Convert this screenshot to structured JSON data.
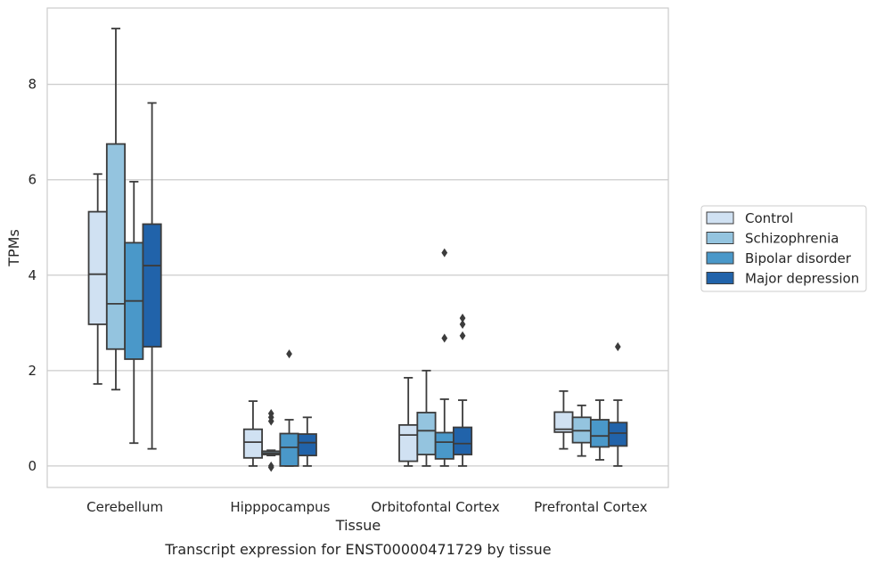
{
  "caption": "Transcript expression for ENST00000471729 by tissue",
  "chart_data": {
    "type": "box",
    "xlabel": "Tissue",
    "ylabel": "TPMs",
    "ylim": [
      -0.45,
      9.6
    ],
    "yticks": [
      0,
      2,
      4,
      6,
      8
    ],
    "grid": "horizontal",
    "legend_position": "right",
    "categories": [
      "Cerebellum",
      "Hipppocampus",
      "Orbitofontal Cortex",
      "Prefrontal Cortex"
    ],
    "series": [
      {
        "name": "Control",
        "color": "#d0e1f2",
        "boxes": [
          {
            "whislo": 1.72,
            "q1": 2.97,
            "med": 4.02,
            "q3": 5.33,
            "whishi": 6.12,
            "fliers": []
          },
          {
            "whislo": 0.0,
            "q1": 0.17,
            "med": 0.5,
            "q3": 0.77,
            "whishi": 1.36,
            "fliers": []
          },
          {
            "whislo": 0.0,
            "q1": 0.1,
            "med": 0.65,
            "q3": 0.86,
            "whishi": 1.85,
            "fliers": []
          },
          {
            "whislo": 0.36,
            "q1": 0.71,
            "med": 0.77,
            "q3": 1.13,
            "whishi": 1.57,
            "fliers": []
          }
        ]
      },
      {
        "name": "Schizophrenia",
        "color": "#94c4df",
        "boxes": [
          {
            "whislo": 1.6,
            "q1": 2.45,
            "med": 3.4,
            "q3": 6.75,
            "whishi": 9.17,
            "fliers": []
          },
          {
            "whislo": 0.22,
            "q1": 0.24,
            "med": 0.27,
            "q3": 0.31,
            "whishi": 0.33,
            "fliers": [
              1.1,
              1.02,
              0.94,
              0.0,
              -0.03
            ]
          },
          {
            "whislo": 0.0,
            "q1": 0.24,
            "med": 0.74,
            "q3": 1.12,
            "whishi": 2.0,
            "fliers": []
          },
          {
            "whislo": 0.21,
            "q1": 0.49,
            "med": 0.74,
            "q3": 1.02,
            "whishi": 1.27,
            "fliers": []
          }
        ]
      },
      {
        "name": "Bipolar disorder",
        "color": "#4a98c9",
        "boxes": [
          {
            "whislo": 0.48,
            "q1": 2.24,
            "med": 3.46,
            "q3": 4.68,
            "whishi": 5.96,
            "fliers": []
          },
          {
            "whislo": 0.0,
            "q1": 0.0,
            "med": 0.39,
            "q3": 0.68,
            "whishi": 0.97,
            "fliers": [
              2.35
            ]
          },
          {
            "whislo": 0.0,
            "q1": 0.15,
            "med": 0.5,
            "q3": 0.7,
            "whishi": 1.4,
            "fliers": [
              4.47,
              2.68
            ]
          },
          {
            "whislo": 0.13,
            "q1": 0.4,
            "med": 0.63,
            "q3": 0.97,
            "whishi": 1.38,
            "fliers": []
          }
        ]
      },
      {
        "name": "Major depression",
        "color": "#2163aa",
        "boxes": [
          {
            "whislo": 0.36,
            "q1": 2.5,
            "med": 4.2,
            "q3": 5.07,
            "whishi": 7.61,
            "fliers": []
          },
          {
            "whislo": 0.0,
            "q1": 0.22,
            "med": 0.49,
            "q3": 0.67,
            "whishi": 1.02,
            "fliers": []
          },
          {
            "whislo": 0.0,
            "q1": 0.24,
            "med": 0.47,
            "q3": 0.81,
            "whishi": 1.38,
            "fliers": [
              3.1,
              2.97,
              2.73
            ]
          },
          {
            "whislo": 0.0,
            "q1": 0.42,
            "med": 0.69,
            "q3": 0.91,
            "whishi": 1.38,
            "fliers": [
              2.5
            ]
          }
        ]
      }
    ]
  }
}
